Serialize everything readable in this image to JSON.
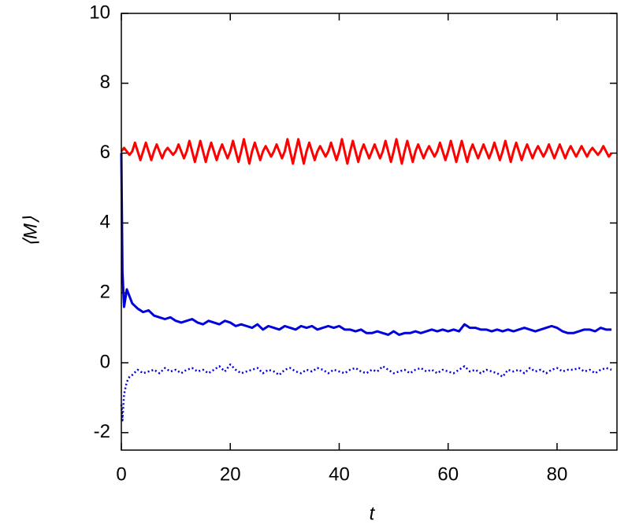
{
  "chart_data": {
    "type": "line",
    "x_label": "t",
    "y_label": "⟨M⟩",
    "xlim": [
      0,
      91
    ],
    "ylim": [
      -2.5,
      10
    ],
    "xticks": [
      0,
      20,
      40,
      60,
      80
    ],
    "yticks": [
      -2,
      0,
      2,
      4,
      6,
      8,
      10
    ],
    "series": [
      {
        "color": "#ff0000",
        "style": "solid",
        "x": [
          0,
          0.5,
          1,
          1.5,
          2,
          2.5,
          3,
          3.5,
          4,
          4.5,
          5,
          5.5,
          6,
          6.5,
          7,
          7.5,
          8,
          8.5,
          9,
          9.5,
          10,
          10.5,
          11,
          11.5,
          12,
          12.5,
          13,
          13.5,
          14,
          14.5,
          15,
          15.5,
          16,
          16.5,
          17,
          17.5,
          18,
          18.5,
          19,
          19.5,
          20,
          20.5,
          21,
          21.5,
          22,
          22.5,
          23,
          23.5,
          24,
          24.5,
          25,
          25.5,
          26,
          26.5,
          27,
          27.5,
          28,
          28.5,
          29,
          29.5,
          30,
          30.5,
          31,
          31.5,
          32,
          32.5,
          33,
          33.5,
          34,
          34.5,
          35,
          35.5,
          36,
          36.5,
          37,
          37.5,
          38,
          38.5,
          39,
          39.5,
          40,
          40.5,
          41,
          41.5,
          42,
          42.5,
          43,
          43.5,
          44,
          44.5,
          45,
          45.5,
          46,
          46.5,
          47,
          47.5,
          48,
          48.5,
          49,
          49.5,
          50,
          50.5,
          51,
          51.5,
          52,
          52.5,
          53,
          53.5,
          54,
          54.5,
          55,
          55.5,
          56,
          56.5,
          57,
          57.5,
          58,
          58.5,
          59,
          59.5,
          60,
          60.5,
          61,
          61.5,
          62,
          62.5,
          63,
          63.5,
          64,
          64.5,
          65,
          65.5,
          66,
          66.5,
          67,
          67.5,
          68,
          68.5,
          69,
          69.5,
          70,
          70.5,
          71,
          71.5,
          72,
          72.5,
          73,
          73.5,
          74,
          74.5,
          75,
          75.5,
          76,
          76.5,
          77,
          77.5,
          78,
          78.5,
          79,
          79.5,
          80,
          80.5,
          81,
          81.5,
          82,
          82.5,
          83,
          83.5,
          84,
          84.5,
          85,
          85.5,
          86,
          86.5,
          87,
          87.5,
          88,
          88.5,
          89,
          89.5,
          90
        ],
        "values": [
          6.05,
          6.15,
          6.05,
          5.95,
          6.05,
          6.3,
          6.05,
          5.8,
          6.05,
          6.3,
          6.05,
          5.8,
          6.05,
          6.25,
          6.05,
          5.85,
          6.05,
          6.15,
          6.05,
          5.95,
          6.05,
          6.25,
          6.05,
          5.85,
          6.05,
          6.35,
          6.05,
          5.75,
          6.05,
          6.35,
          6.05,
          5.75,
          6.05,
          6.3,
          6.05,
          5.8,
          6.05,
          6.25,
          6.05,
          5.85,
          6.05,
          6.35,
          6.05,
          5.75,
          6.05,
          6.4,
          6.05,
          5.7,
          6.05,
          6.3,
          6.05,
          5.8,
          6.05,
          6.2,
          6.05,
          5.9,
          6.05,
          6.25,
          6.05,
          5.85,
          6.05,
          6.4,
          6.05,
          5.7,
          6.05,
          6.4,
          6.05,
          5.7,
          6.05,
          6.3,
          6.05,
          5.8,
          6.05,
          6.2,
          6.05,
          5.9,
          6.05,
          6.3,
          6.05,
          5.8,
          6.05,
          6.4,
          6.05,
          5.7,
          6.05,
          6.35,
          6.05,
          5.75,
          6.05,
          6.25,
          6.05,
          5.85,
          6.05,
          6.25,
          6.05,
          5.85,
          6.05,
          6.35,
          6.05,
          5.75,
          6.05,
          6.4,
          6.05,
          5.7,
          6.05,
          6.35,
          6.05,
          5.75,
          6.05,
          6.25,
          6.05,
          5.85,
          6.05,
          6.2,
          6.05,
          5.9,
          6.05,
          6.3,
          6.05,
          5.8,
          6.05,
          6.35,
          6.05,
          5.75,
          6.05,
          6.35,
          6.05,
          5.75,
          6.05,
          6.25,
          6.05,
          5.85,
          6.05,
          6.25,
          6.05,
          5.85,
          6.05,
          6.3,
          6.05,
          5.8,
          6.05,
          6.35,
          6.05,
          5.75,
          6.05,
          6.3,
          6.05,
          5.8,
          6.05,
          6.25,
          6.05,
          5.85,
          6.05,
          6.2,
          6.05,
          5.9,
          6.05,
          6.25,
          6.05,
          5.85,
          6.05,
          6.25,
          6.05,
          5.85,
          6.05,
          6.2,
          6.05,
          5.9,
          6.05,
          6.2,
          6.05,
          5.9,
          6.05,
          6.15,
          6.05,
          5.95,
          6.05,
          6.2,
          6.05,
          5.9,
          6.0
        ]
      },
      {
        "color": "#0000dd",
        "style": "solid",
        "x": [
          0,
          0.2,
          0.5,
          1,
          1.5,
          2,
          3,
          4,
          5,
          6,
          7,
          8,
          9,
          10,
          11,
          12,
          13,
          14,
          15,
          16,
          17,
          18,
          19,
          20,
          21,
          22,
          23,
          24,
          25,
          26,
          27,
          28,
          29,
          30,
          31,
          32,
          33,
          34,
          35,
          36,
          37,
          38,
          39,
          40,
          41,
          42,
          43,
          44,
          45,
          46,
          47,
          48,
          49,
          50,
          51,
          52,
          53,
          54,
          55,
          56,
          57,
          58,
          59,
          60,
          61,
          62,
          63,
          64,
          65,
          66,
          67,
          68,
          69,
          70,
          71,
          72,
          73,
          74,
          75,
          76,
          77,
          78,
          79,
          80,
          81,
          82,
          83,
          84,
          85,
          86,
          87,
          88,
          89,
          90
        ],
        "values": [
          6.0,
          2.6,
          1.6,
          2.1,
          1.9,
          1.7,
          1.55,
          1.45,
          1.5,
          1.35,
          1.3,
          1.25,
          1.3,
          1.2,
          1.15,
          1.2,
          1.25,
          1.15,
          1.1,
          1.2,
          1.15,
          1.1,
          1.2,
          1.15,
          1.05,
          1.1,
          1.05,
          1.0,
          1.1,
          0.95,
          1.05,
          1.0,
          0.95,
          1.05,
          1.0,
          0.95,
          1.05,
          1.0,
          1.05,
          0.95,
          1.0,
          1.05,
          1.0,
          1.05,
          0.95,
          0.95,
          0.9,
          0.95,
          0.85,
          0.85,
          0.9,
          0.85,
          0.8,
          0.9,
          0.8,
          0.85,
          0.85,
          0.9,
          0.85,
          0.9,
          0.95,
          0.9,
          0.95,
          0.9,
          0.95,
          0.9,
          1.1,
          1.0,
          1.0,
          0.95,
          0.95,
          0.9,
          0.95,
          0.9,
          0.95,
          0.9,
          0.95,
          1.0,
          0.95,
          0.9,
          0.95,
          1.0,
          1.05,
          1.0,
          0.9,
          0.85,
          0.85,
          0.9,
          0.95,
          0.95,
          0.9,
          1.0,
          0.95,
          0.95
        ]
      },
      {
        "color": "#0000dd",
        "style": "dotted",
        "x": [
          0,
          0.2,
          0.5,
          1,
          1.5,
          2,
          3,
          4,
          5,
          6,
          7,
          8,
          9,
          10,
          11,
          12,
          13,
          14,
          15,
          16,
          17,
          18,
          19,
          20,
          21,
          22,
          23,
          24,
          25,
          26,
          27,
          28,
          29,
          30,
          31,
          32,
          33,
          34,
          35,
          36,
          37,
          38,
          39,
          40,
          41,
          42,
          43,
          44,
          45,
          46,
          47,
          48,
          49,
          50,
          51,
          52,
          53,
          54,
          55,
          56,
          57,
          58,
          59,
          60,
          61,
          62,
          63,
          64,
          65,
          66,
          67,
          68,
          69,
          70,
          71,
          72,
          73,
          74,
          75,
          76,
          77,
          78,
          79,
          80,
          81,
          82,
          83,
          84,
          85,
          86,
          87,
          88,
          89,
          90
        ],
        "values": [
          -1.2,
          -1.65,
          -0.9,
          -0.55,
          -0.4,
          -0.35,
          -0.2,
          -0.3,
          -0.25,
          -0.2,
          -0.3,
          -0.15,
          -0.25,
          -0.2,
          -0.3,
          -0.2,
          -0.15,
          -0.25,
          -0.2,
          -0.3,
          -0.2,
          -0.1,
          -0.25,
          -0.05,
          -0.2,
          -0.3,
          -0.25,
          -0.2,
          -0.15,
          -0.3,
          -0.2,
          -0.25,
          -0.35,
          -0.2,
          -0.15,
          -0.25,
          -0.3,
          -0.2,
          -0.25,
          -0.15,
          -0.2,
          -0.3,
          -0.2,
          -0.25,
          -0.3,
          -0.2,
          -0.15,
          -0.25,
          -0.3,
          -0.2,
          -0.25,
          -0.1,
          -0.2,
          -0.3,
          -0.25,
          -0.2,
          -0.3,
          -0.2,
          -0.15,
          -0.25,
          -0.2,
          -0.3,
          -0.2,
          -0.25,
          -0.3,
          -0.2,
          -0.1,
          -0.25,
          -0.2,
          -0.3,
          -0.2,
          -0.25,
          -0.3,
          -0.4,
          -0.2,
          -0.25,
          -0.2,
          -0.3,
          -0.15,
          -0.25,
          -0.2,
          -0.3,
          -0.2,
          -0.15,
          -0.25,
          -0.2,
          -0.2,
          -0.15,
          -0.25,
          -0.2,
          -0.3,
          -0.2,
          -0.15,
          -0.2
        ]
      }
    ]
  }
}
